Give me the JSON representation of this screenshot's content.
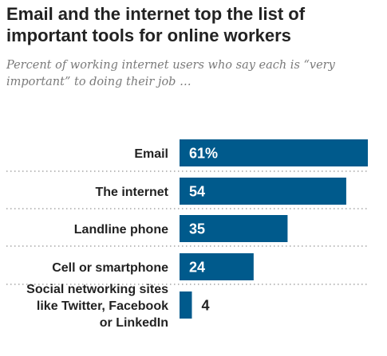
{
  "chart_data": {
    "type": "bar",
    "orientation": "horizontal",
    "title": "Email and the internet top the list of important tools for online workers",
    "subtitle": "Percent of working internet users who say each is “very important” to doing their job …",
    "categories": [
      [
        "Email"
      ],
      [
        "The internet"
      ],
      [
        "Landline phone"
      ],
      [
        "Cell or smartphone"
      ],
      [
        "Social networking sites",
        "like Twitter, Facebook",
        "or LinkedIn"
      ]
    ],
    "values": [
      61,
      54,
      35,
      24,
      4
    ],
    "value_labels": [
      "61%",
      "54",
      "35",
      "24",
      "4"
    ],
    "xlim": [
      0,
      61
    ],
    "bar_color": "#005a8c",
    "divider_style": "dotted"
  }
}
